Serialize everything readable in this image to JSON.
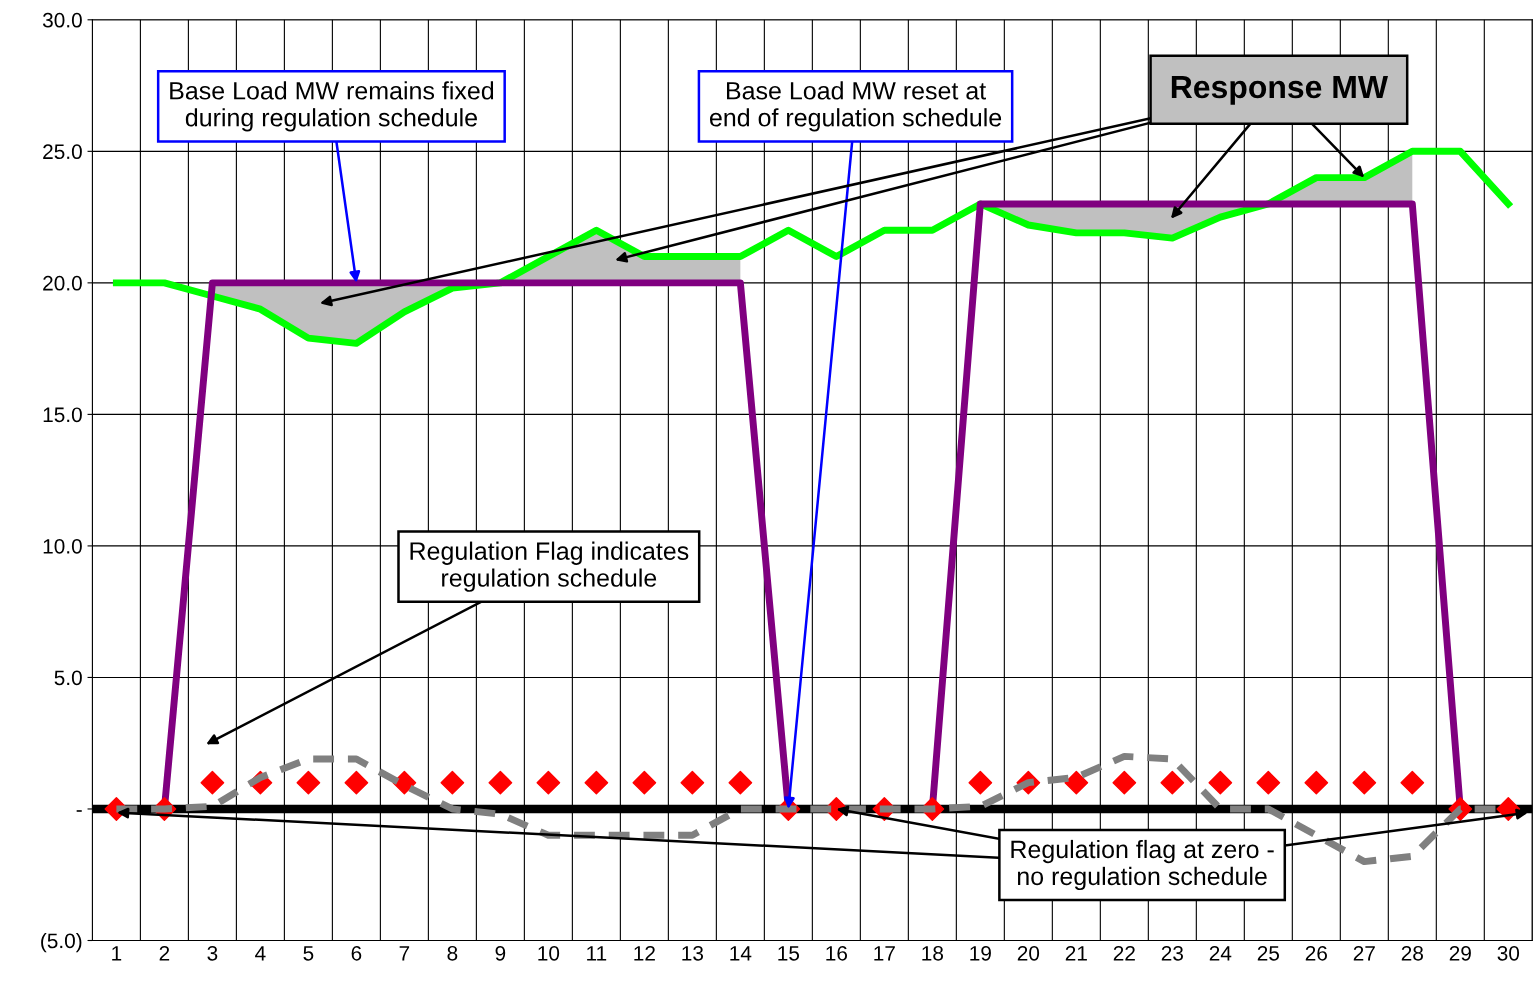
{
  "chart_data": {
    "type": "line",
    "categories": [
      "1",
      "2",
      "3",
      "4",
      "5",
      "6",
      "7",
      "8",
      "9",
      "10",
      "11",
      "12",
      "13",
      "14",
      "15",
      "16",
      "17",
      "18",
      "19",
      "20",
      "21",
      "22",
      "23",
      "24",
      "25",
      "26",
      "27",
      "28",
      "29",
      "30"
    ],
    "series": [
      {
        "color": "#808080",
        "line_style": "dashed",
        "values": [
          0,
          0,
          0.1,
          1.2,
          1.9,
          1.9,
          0.9,
          0,
          -0.2,
          -1,
          -1,
          -1,
          -1,
          0,
          0,
          0,
          0,
          0,
          0.1,
          1,
          1.2,
          2,
          1.9,
          0,
          0,
          -1,
          -2,
          -1.8,
          0,
          0
        ]
      },
      {
        "color": "#00ff00",
        "values": [
          20,
          20,
          19.5,
          19,
          17.9,
          17.7,
          18.9,
          19.8,
          20,
          21,
          22,
          21,
          21,
          21,
          22,
          21,
          22,
          22,
          23,
          22.2,
          21.9,
          21.9,
          21.7,
          22.5,
          23,
          24,
          24,
          25,
          25,
          23
        ]
      },
      {
        "color": "#800080",
        "values": [
          0,
          0,
          20,
          20,
          20,
          20,
          20,
          20,
          20,
          20,
          20,
          20,
          20,
          20,
          0,
          0,
          0,
          0,
          23,
          23,
          23,
          23,
          23,
          23,
          23,
          23,
          23,
          23,
          0,
          0
        ],
        "lower": [
          null,
          null,
          19.5,
          19,
          17.9,
          17.7,
          18.9,
          19.8,
          20,
          20,
          20,
          20,
          20,
          20,
          null,
          null,
          null,
          null,
          23,
          22.2,
          21.9,
          21.9,
          21.7,
          22.5,
          23,
          23,
          23,
          23,
          null,
          null
        ],
        "upper": [
          null,
          null,
          20,
          20,
          20,
          20,
          20,
          20,
          20,
          21,
          22,
          21,
          21,
          21,
          null,
          null,
          null,
          null,
          23,
          23,
          23,
          23,
          23,
          23,
          23,
          24,
          24,
          25,
          null,
          null
        ]
      },
      {
        "type": "scatter",
        "color": "#ff0000",
        "marker": "diamond",
        "values": [
          0,
          0,
          1,
          1,
          1,
          1,
          1,
          1,
          1,
          1,
          1,
          1,
          1,
          1,
          0,
          0,
          0,
          0,
          1,
          1,
          1,
          1,
          1,
          1,
          1,
          1,
          1,
          1,
          0,
          0
        ]
      }
    ],
    "ylim": [
      -5,
      30
    ],
    "yticks": [
      {
        "value": -5,
        "label": "(5.0)"
      },
      {
        "value": 0,
        "label": "-"
      },
      {
        "value": 5,
        "label": "5.0"
      },
      {
        "value": 10,
        "label": "10.0"
      },
      {
        "value": 15,
        "label": "15.0"
      },
      {
        "value": 20,
        "label": "20.0"
      },
      {
        "value": 25,
        "label": "25.0"
      },
      {
        "value": 30,
        "label": "30.0"
      }
    ],
    "ref_lines": [
      {
        "axis": "y",
        "value": 0,
        "color": "#000000"
      }
    ],
    "grid": true,
    "annotations": [
      {
        "text": "Base Load MW remains fixed\nduring regulation schedule",
        "x": "6",
        "y": 20
      },
      {
        "text": "Base Load MW reset at\nend of regulation schedule",
        "x": "15",
        "y": 0
      },
      {
        "text": "Response MW",
        "x": "27",
        "y": 24
      },
      "Regulation Flag indicates\nregulation schedule",
      {
        "text": "Regulation flag at zero -\nno regulation schedule",
        "x": "16",
        "y": 0
      }
    ]
  }
}
